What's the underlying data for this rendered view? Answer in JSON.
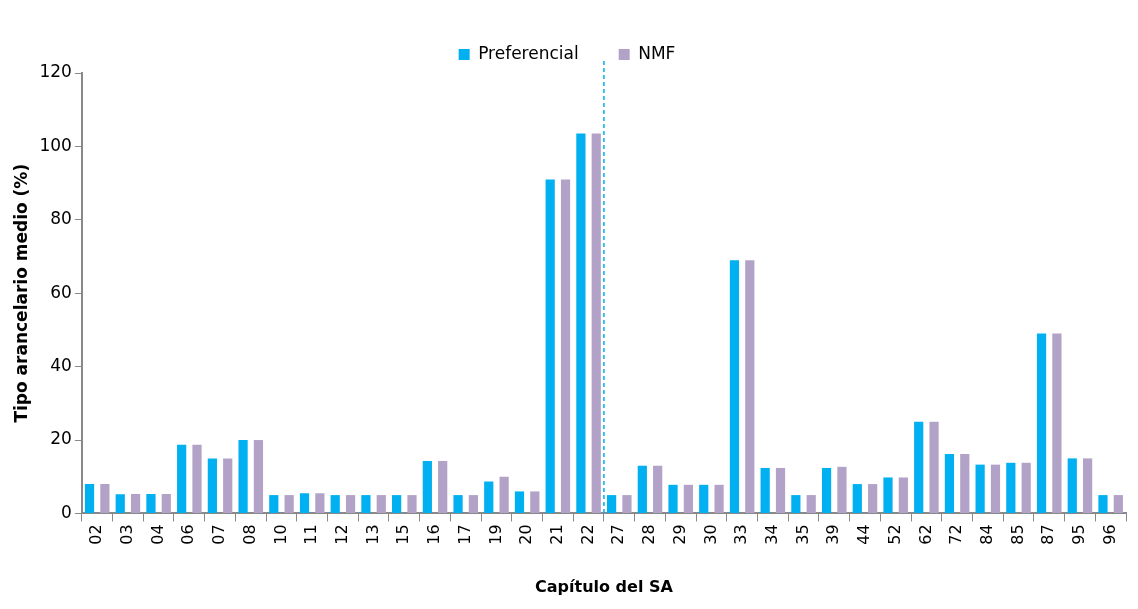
{
  "chart_data": {
    "type": "bar",
    "xlabel": "Capítulo del SA",
    "ylabel": "Tipo arancelario medio (%)",
    "categories": [
      "02",
      "03",
      "04",
      "06",
      "07",
      "08",
      "10",
      "11",
      "12",
      "13",
      "15",
      "16",
      "17",
      "19",
      "20",
      "21",
      "22",
      "27",
      "28",
      "29",
      "30",
      "33",
      "34",
      "35",
      "39",
      "44",
      "52",
      "62",
      "72",
      "84",
      "85",
      "87",
      "95",
      "96"
    ],
    "series": [
      {
        "name": "Preferencial",
        "color": "#00b0f0",
        "values": [
          8,
          5.2,
          5.3,
          18.7,
          15,
          20,
          5,
          5.5,
          5,
          5,
          5,
          14.3,
          5,
          8.7,
          6,
          91,
          103.5,
          5,
          13,
          7.8,
          7.8,
          69,
          12.4,
          5,
          12.4,
          8,
          9.8,
          25,
          16.2,
          13.3,
          13.8,
          49,
          15,
          5
        ]
      },
      {
        "name": "NMF",
        "color": "#b3a2c7",
        "values": [
          8,
          5.3,
          5.3,
          18.7,
          15,
          20,
          5,
          5.5,
          5,
          5,
          5,
          14.3,
          5,
          10,
          6,
          91,
          103.5,
          5,
          13,
          7.8,
          7.8,
          69,
          12.4,
          5,
          12.7,
          8,
          9.8,
          25,
          16.2,
          13.3,
          13.8,
          49,
          15,
          5
        ]
      }
    ],
    "ylim": [
      0,
      120
    ],
    "yticks": [
      0,
      20,
      40,
      60,
      80,
      100,
      120
    ],
    "grid": false,
    "legend": "top",
    "ref_lines": [
      {
        "axis": "x",
        "value": "22",
        "color": "#00b0f0",
        "line_style": "dashed"
      }
    ]
  }
}
